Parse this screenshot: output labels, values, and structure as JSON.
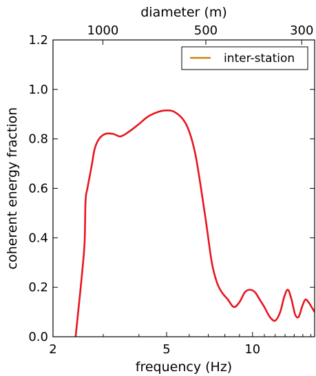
{
  "chart_data": {
    "type": "line",
    "xlabel": "frequency (Hz)",
    "ylabel": "coherent energy fraction",
    "x_scale": "log",
    "xlim": [
      2,
      16.5
    ],
    "ylim": [
      0,
      1.2
    ],
    "x_ticks": [
      {
        "value": 2,
        "label": "2"
      },
      {
        "value": 5,
        "label": "5"
      },
      {
        "value": 10,
        "label": "10"
      }
    ],
    "x_minor_ticks": [
      3,
      4,
      6,
      7,
      8,
      9,
      11,
      12,
      13,
      14,
      15,
      16
    ],
    "y_ticks": [
      {
        "value": 0,
        "label": "0.0"
      },
      {
        "value": 0.2,
        "label": "0.2"
      },
      {
        "value": 0.4,
        "label": "0.4"
      },
      {
        "value": 0.6,
        "label": "0.6"
      },
      {
        "value": 0.8,
        "label": "0.8"
      },
      {
        "value": 1.0,
        "label": "1.0"
      },
      {
        "value": 1.2,
        "label": "1.2"
      }
    ],
    "top_axis": {
      "label": "diameter (m)",
      "ticks": [
        {
          "frequency": 2.99,
          "label": "1000"
        },
        {
          "frequency": 6.86,
          "label": "500"
        },
        {
          "frequency": 14.87,
          "label": "300"
        }
      ]
    },
    "legend": {
      "position": "top-right",
      "entries": [
        {
          "label": "inter-station",
          "color": "#c8820f"
        }
      ]
    },
    "grid": false,
    "series": [
      {
        "color": "#e8141e",
        "x": [
          2.4,
          2.45,
          2.52,
          2.58,
          2.6,
          2.64,
          2.7,
          2.74,
          2.8,
          2.9,
          3.05,
          3.25,
          3.45,
          3.7,
          4.0,
          4.3,
          4.7,
          5.0,
          5.3,
          5.7,
          6.0,
          6.3,
          6.6,
          6.9,
          7.2,
          7.5,
          7.8,
          8.2,
          8.6,
          9.0,
          9.4,
          9.8,
          10.2,
          10.6,
          11.0,
          11.5,
          12.0,
          12.5,
          12.9,
          13.3,
          13.7,
          14.1,
          14.5,
          14.9,
          15.3,
          15.7,
          16.1,
          16.5
        ],
        "y": [
          0.0,
          0.1,
          0.24,
          0.38,
          0.55,
          0.6,
          0.66,
          0.7,
          0.76,
          0.8,
          0.82,
          0.82,
          0.81,
          0.83,
          0.86,
          0.89,
          0.91,
          0.915,
          0.91,
          0.88,
          0.83,
          0.74,
          0.6,
          0.45,
          0.3,
          0.22,
          0.18,
          0.15,
          0.12,
          0.14,
          0.18,
          0.19,
          0.18,
          0.15,
          0.12,
          0.08,
          0.065,
          0.1,
          0.16,
          0.19,
          0.15,
          0.09,
          0.08,
          0.12,
          0.15,
          0.14,
          0.12,
          0.1
        ]
      }
    ]
  }
}
